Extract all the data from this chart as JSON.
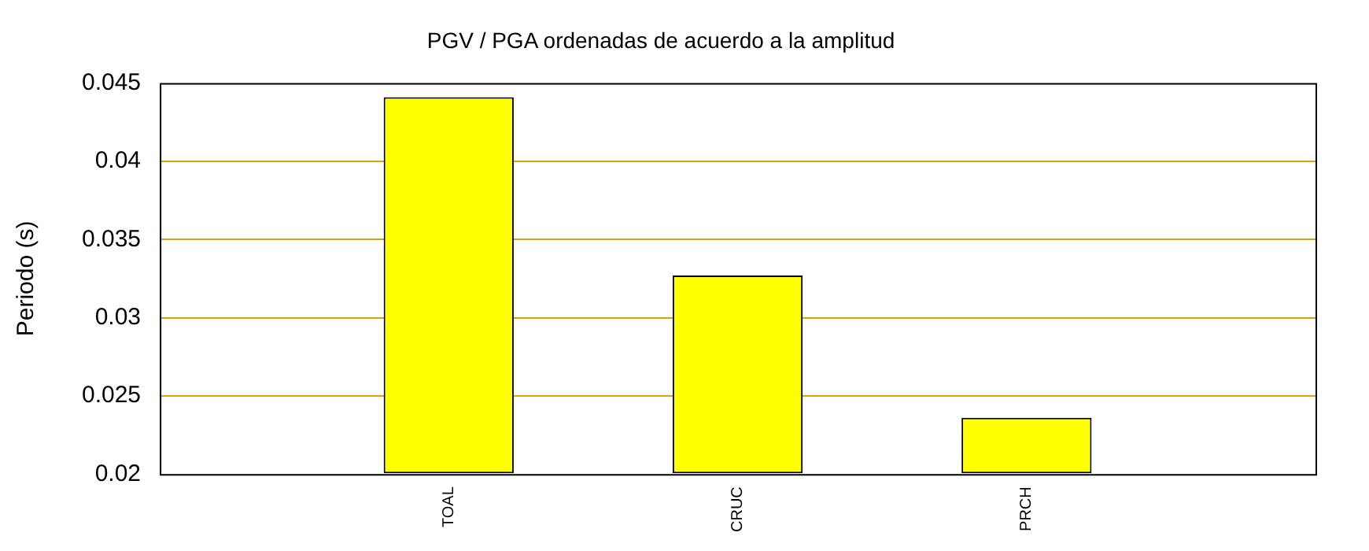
{
  "chart_data": {
    "type": "bar",
    "title": "PGV / PGA ordenadas de acuerdo a la amplitud",
    "ylabel": "Periodo (s)",
    "categories": [
      "TOAL",
      "CRUC",
      "PRCH"
    ],
    "values": [
      0.0441,
      0.0327,
      0.0236
    ],
    "color": "#ffff00",
    "ylim": [
      0.02,
      0.045
    ],
    "yticks": [
      0.02,
      0.025,
      0.03,
      0.035,
      0.04,
      0.045
    ],
    "grid": "y"
  }
}
